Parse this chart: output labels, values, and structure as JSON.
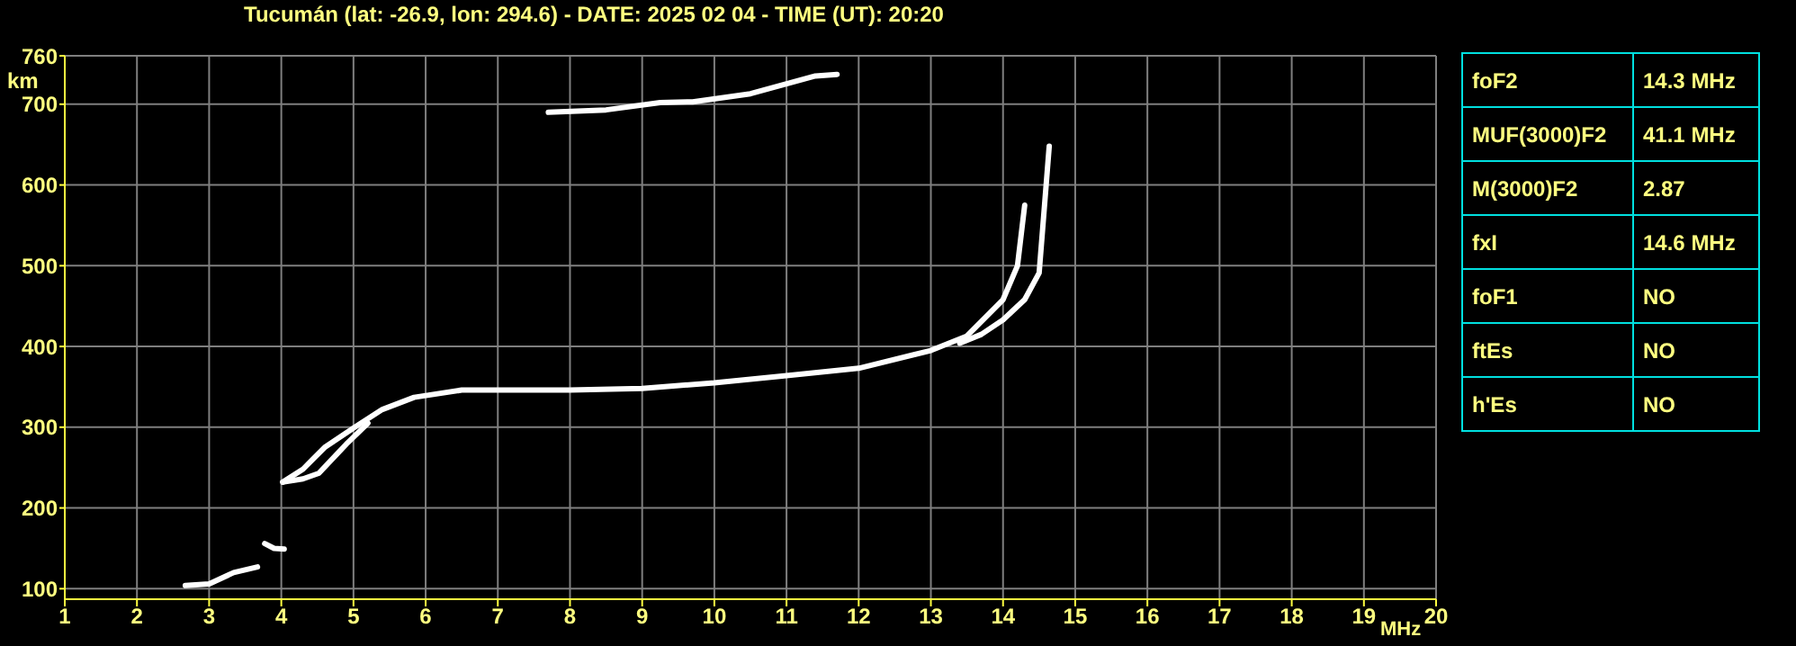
{
  "chart_data": {
    "type": "line",
    "title": "Tucumán (lat: -26.9, lon: 294.6) - DATE: 2025 02 04 - TIME (UT): 20:20",
    "xlabel": "MHz",
    "ylabel": "km",
    "xlim": [
      1,
      20
    ],
    "xticks": [
      1,
      2,
      3,
      4,
      5,
      6,
      7,
      8,
      9,
      10,
      11,
      12,
      13,
      14,
      15,
      16,
      17,
      18,
      19,
      20
    ],
    "ylim": [
      87,
      760
    ],
    "yticks": [
      100,
      200,
      300,
      400,
      500,
      600,
      700,
      760
    ],
    "grid": true,
    "legend": false,
    "marker": "none",
    "line_style": "solid",
    "series": [
      {
        "color": "#ffffff",
        "x": [
          4.02,
          4.3,
          4.6,
          5.0,
          5.4,
          5.84,
          6.5,
          7,
          8,
          9,
          10,
          11,
          12,
          13,
          13.5,
          14,
          14.2,
          14.3
        ],
        "values": [
          232,
          248,
          275,
          299,
          322,
          337,
          346,
          346,
          346,
          348,
          355,
          364,
          373,
          395,
          413,
          458,
          500,
          575
        ]
      },
      {
        "color": "#ffffff",
        "x": [
          4.02,
          4.3,
          4.52,
          4.9,
          5.2
        ],
        "values": [
          232,
          236,
          243,
          279,
          305
        ]
      },
      {
        "color": "#ffffff",
        "x": [
          13.4,
          13.7,
          14.0,
          14.3,
          14.5,
          14.64
        ],
        "values": [
          404,
          415,
          433,
          458,
          491,
          648
        ]
      },
      {
        "color": "#ffffff",
        "x": [
          7.7,
          8.5,
          9.25,
          9.7,
          10.5,
          11.4,
          11.7
        ],
        "values": [
          690,
          693,
          702,
          703,
          713,
          735,
          737
        ]
      },
      {
        "color": "#ffffff",
        "x": [
          2.67,
          3.0,
          3.34,
          3.67
        ],
        "values": [
          104,
          106,
          120,
          127
        ]
      },
      {
        "color": "#ffffff",
        "x": [
          3.77,
          3.9,
          4.04
        ],
        "values": [
          156,
          150,
          149
        ]
      }
    ],
    "annotations": [
      "foF2",
      "14.3 MHz",
      "MUF(3000)F2",
      "41.1 MHz",
      "M(3000)F2",
      "2.87",
      "fxI",
      "14.6 MHz",
      "foF1",
      "NO",
      "ftEs",
      "NO",
      "h'Es",
      "NO"
    ]
  }
}
